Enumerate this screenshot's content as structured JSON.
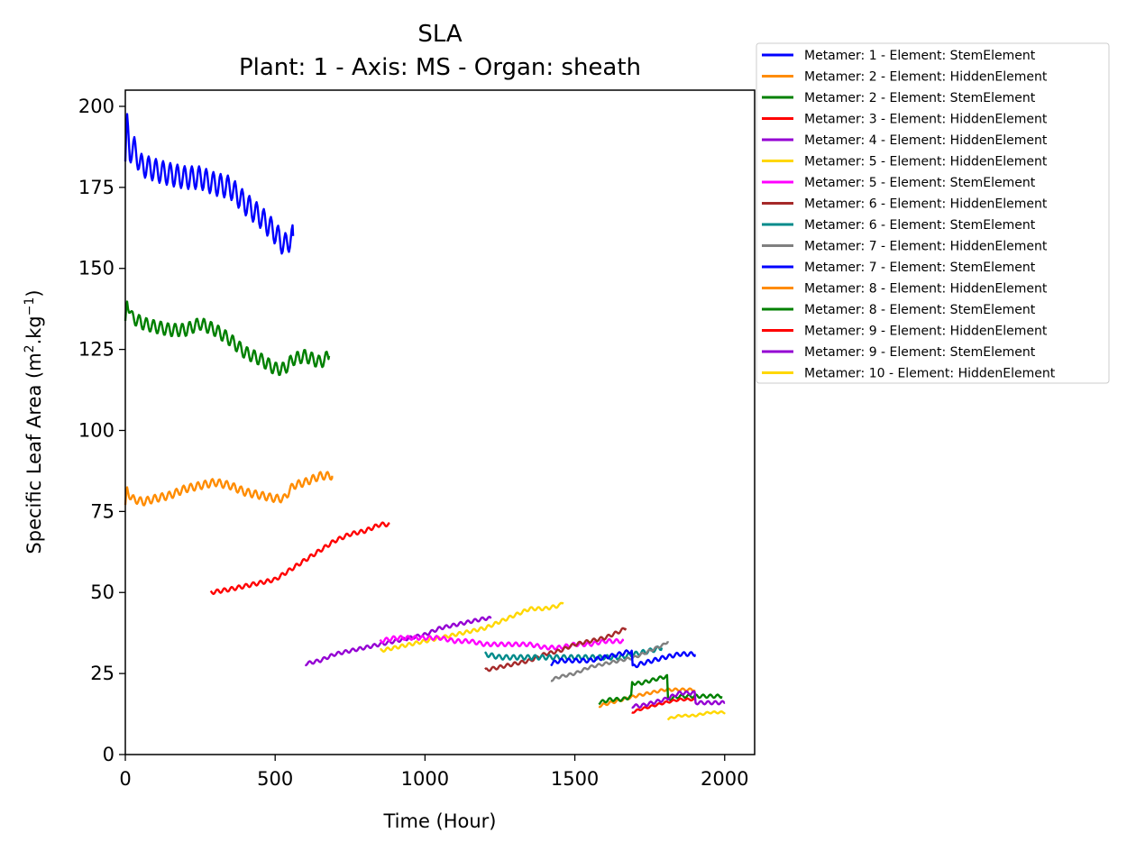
{
  "chart_data": {
    "type": "line",
    "title": "SLA",
    "subtitle": "Plant: 1 - Axis: MS - Organ: sheath",
    "xlabel": "Time (Hour)",
    "ylabel_main": "Specific Leaf Area (m",
    "ylabel_sup1": "2",
    "ylabel_mid": ".kg",
    "ylabel_sup2": "−1",
    "ylabel_end": ")",
    "xlim": [
      0,
      2100
    ],
    "ylim": [
      0,
      205
    ],
    "xticks": [
      0,
      500,
      1000,
      1500,
      2000
    ],
    "yticks": [
      0,
      25,
      50,
      75,
      100,
      125,
      150,
      175,
      200
    ],
    "grid": false,
    "legend_position": "outside-top-right",
    "series": [
      {
        "name": "Metamer: 1 - Element: StemElement",
        "color": "#0000ff",
        "x": [
          0,
          5,
          15,
          30,
          50,
          80,
          110,
          150,
          200,
          250,
          300,
          350,
          400,
          450,
          500,
          530,
          560
        ],
        "y": [
          183,
          195,
          186,
          187,
          182,
          181,
          180,
          179,
          178,
          178,
          176,
          175,
          170,
          166,
          161,
          157,
          160
        ],
        "wiggle": 3.5,
        "period": 24
      },
      {
        "name": "Metamer: 2 - Element: HiddenElement",
        "color": "#ff8c00",
        "x": [
          0,
          5,
          20,
          60,
          100,
          150,
          200,
          250,
          300,
          350,
          400,
          450,
          500,
          530,
          560,
          600,
          650,
          690
        ],
        "y": [
          76,
          82,
          79,
          78,
          79,
          80,
          82,
          83,
          84,
          83,
          81,
          80,
          79,
          79,
          83,
          84,
          86,
          86
        ],
        "wiggle": 1.2,
        "period": 24
      },
      {
        "name": "Metamer: 2 - Element: StemElement",
        "color": "#008000",
        "x": [
          0,
          5,
          20,
          60,
          100,
          150,
          200,
          250,
          300,
          350,
          400,
          450,
          500,
          530,
          560,
          600,
          650,
          680
        ],
        "y": [
          132,
          141,
          135,
          133,
          132,
          131,
          131,
          133,
          131,
          128,
          124,
          122,
          119,
          119,
          122,
          123,
          121,
          123
        ],
        "wiggle": 2,
        "period": 24
      },
      {
        "name": "Metamer: 3 - Element: HiddenElement",
        "color": "#ff0000",
        "x": [
          285,
          350,
          400,
          450,
          500,
          550,
          600,
          650,
          700,
          750,
          800,
          850,
          880
        ],
        "y": [
          50,
          51,
          52,
          53,
          54,
          57,
          60,
          63,
          66,
          68,
          69,
          71,
          71
        ],
        "wiggle": 0.6,
        "period": 24
      },
      {
        "name": "Metamer: 4 - Element: HiddenElement",
        "color": "#9400d3",
        "x": [
          600,
          650,
          700,
          750,
          800,
          850,
          900,
          950,
          1000,
          1050,
          1100,
          1150,
          1200,
          1220
        ],
        "y": [
          28,
          29,
          31,
          32,
          33,
          34,
          35,
          36,
          37,
          39,
          40,
          41,
          42,
          42
        ],
        "wiggle": 0.5,
        "period": 24
      },
      {
        "name": "Metamer: 5 - Element: HiddenElement",
        "color": "#ffd700",
        "x": [
          850,
          900,
          950,
          1000,
          1050,
          1100,
          1150,
          1200,
          1250,
          1300,
          1350,
          1400,
          1450,
          1460
        ],
        "y": [
          32,
          33,
          34,
          35,
          36,
          37,
          38,
          39,
          41,
          43,
          45,
          45,
          46,
          47
        ],
        "wiggle": 0.5,
        "period": 24
      },
      {
        "name": "Metamer: 5 - Element: StemElement",
        "color": "#ff00ff",
        "x": [
          850,
          900,
          950,
          1000,
          1050,
          1100,
          1150,
          1200,
          1250,
          1300,
          1350,
          1400,
          1450,
          1500,
          1550,
          1600,
          1660
        ],
        "y": [
          35,
          36,
          36,
          36,
          36,
          35,
          35,
          34,
          34,
          34,
          34,
          33,
          33,
          34,
          34,
          35,
          35
        ],
        "wiggle": 0.6,
        "period": 24
      },
      {
        "name": "Metamer: 6 - Element: HiddenElement",
        "color": "#a52a2a",
        "x": [
          1200,
          1250,
          1300,
          1350,
          1400,
          1450,
          1500,
          1550,
          1600,
          1650,
          1670
        ],
        "y": [
          26,
          27,
          28,
          29,
          31,
          32,
          34,
          35,
          36,
          38,
          39
        ],
        "wiggle": 0.5,
        "period": 24
      },
      {
        "name": "Metamer: 6 - Element: StemElement",
        "color": "#008b8b",
        "x": [
          1200,
          1250,
          1300,
          1350,
          1400,
          1450,
          1500,
          1550,
          1600,
          1650,
          1700,
          1750,
          1790
        ],
        "y": [
          31,
          30,
          30,
          30,
          30,
          30,
          30,
          30,
          30,
          30,
          31,
          32,
          33
        ],
        "wiggle": 0.7,
        "period": 24
      },
      {
        "name": "Metamer: 7 - Element: HiddenElement",
        "color": "#808080",
        "x": [
          1420,
          1450,
          1500,
          1550,
          1600,
          1650,
          1700,
          1750,
          1800,
          1810
        ],
        "y": [
          23,
          24,
          25,
          27,
          28,
          29,
          30,
          32,
          34,
          35
        ],
        "wiggle": 0.4,
        "period": 24
      },
      {
        "name": "Metamer: 7 - Element: StemElement",
        "color": "#0000ff",
        "x": [
          1420,
          1450,
          1500,
          1550,
          1600,
          1650,
          1690,
          1691,
          1720,
          1760,
          1800,
          1850,
          1900
        ],
        "y": [
          28,
          29,
          29,
          29,
          30,
          31,
          32,
          27,
          28,
          29,
          30,
          31,
          31
        ],
        "wiggle": 0.6,
        "period": 24
      },
      {
        "name": "Metamer: 8 - Element: HiddenElement",
        "color": "#ff8c00",
        "x": [
          1580,
          1620,
          1660,
          1700,
          1750,
          1800,
          1850,
          1900
        ],
        "y": [
          15,
          16,
          17,
          18,
          19,
          20,
          20,
          20
        ],
        "wiggle": 0.4,
        "period": 24
      },
      {
        "name": "Metamer: 8 - Element: StemElement",
        "color": "#008000",
        "x": [
          1580,
          1620,
          1660,
          1690,
          1691,
          1720,
          1760,
          1800,
          1810,
          1811,
          1850,
          1900,
          1950,
          1990
        ],
        "y": [
          16,
          17,
          17,
          18,
          22,
          22,
          23,
          24,
          24,
          17,
          18,
          18,
          18,
          18
        ],
        "wiggle": 0.5,
        "period": 24
      },
      {
        "name": "Metamer: 9 - Element: HiddenElement",
        "color": "#ff0000",
        "x": [
          1690,
          1720,
          1760,
          1800,
          1850,
          1900
        ],
        "y": [
          13,
          14,
          15,
          16,
          17,
          17
        ],
        "wiggle": 0.3,
        "period": 24
      },
      {
        "name": "Metamer: 9 - Element: StemElement",
        "color": "#9400d3",
        "x": [
          1690,
          1720,
          1760,
          1800,
          1850,
          1900,
          1901,
          1950,
          2000
        ],
        "y": [
          15,
          15,
          16,
          17,
          19,
          19,
          16,
          16,
          16
        ],
        "wiggle": 0.5,
        "period": 24
      },
      {
        "name": "Metamer: 10 - Element: HiddenElement",
        "color": "#ffd700",
        "x": [
          1810,
          1850,
          1900,
          1950,
          2000
        ],
        "y": [
          11,
          12,
          12,
          13,
          13
        ],
        "wiggle": 0.3,
        "period": 24
      }
    ]
  }
}
